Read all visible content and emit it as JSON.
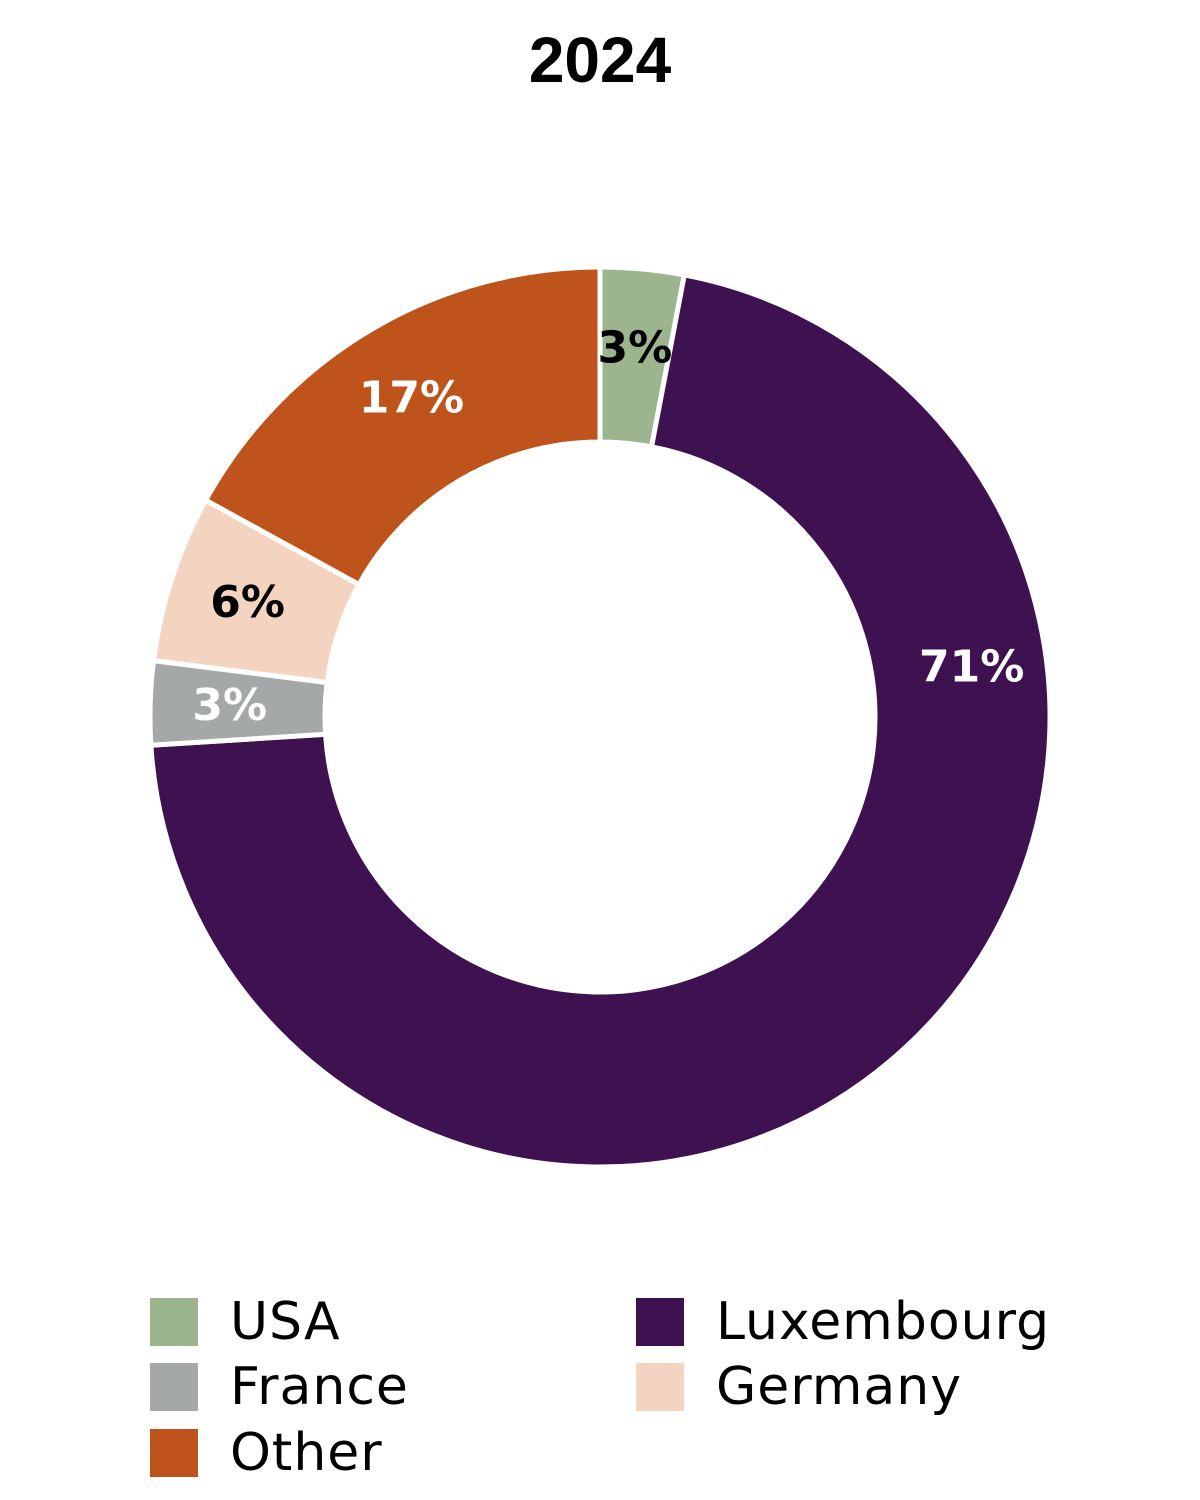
{
  "chart_data": {
    "type": "pie",
    "title": "2024",
    "categories": [
      "USA",
      "Luxembourg",
      "France",
      "Germany",
      "Other"
    ],
    "slices": [
      {
        "label": "USA",
        "value": 3,
        "display": "3%",
        "color": "#9db58f",
        "label_color": "#000000"
      },
      {
        "label": "Luxembourg",
        "value": 71,
        "display": "71%",
        "color": "#3e1150",
        "label_color": "#ffffff"
      },
      {
        "label": "France",
        "value": 3,
        "display": "3%",
        "color": "#a5a8a9",
        "label_color": "#ffffff"
      },
      {
        "label": "Germany",
        "value": 6,
        "display": "6%",
        "color": "#f2d4c1",
        "label_color": "#000000"
      },
      {
        "label": "Other",
        "value": 17,
        "display": "17%",
        "color": "#be531c",
        "label_color": "#ffffff"
      }
    ],
    "slice_order": [
      "USA",
      "Luxembourg",
      "France",
      "Germany",
      "Other"
    ],
    "legend": [
      "USA",
      "Luxembourg",
      "France",
      "Germany",
      "Other"
    ],
    "legend_placement": "bottom"
  }
}
